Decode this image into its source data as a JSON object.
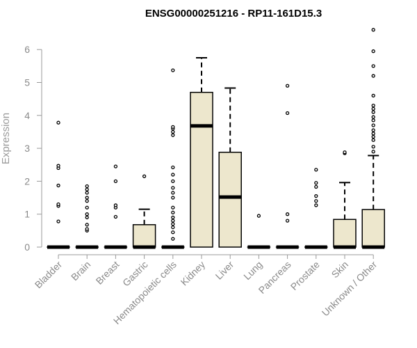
{
  "chart_data": {
    "type": "box",
    "title": "ENSG00000251216 - RP11-161D15.3",
    "xlabel": "",
    "ylabel": "Expression",
    "ylim": [
      0,
      6.6
    ],
    "yticks": [
      0,
      1,
      2,
      3,
      4,
      5,
      6
    ],
    "grid": false,
    "colors": {
      "box_fill": "#ede7cd",
      "stroke": "#000000",
      "axis": "#999999",
      "tick_text": "#8a8a8a"
    },
    "categories": [
      "Bladder",
      "Brain",
      "Breast",
      "Gastric",
      "Hematopoietic cells",
      "Kidney",
      "Liver",
      "Lung",
      "Pancreas",
      "Prostate",
      "Skin",
      "Unknown / Other"
    ],
    "boxes": [
      {
        "q1": 0,
        "median": 0,
        "q3": 0,
        "whisker_low": 0,
        "whisker_high": 0,
        "outliers": [
          0.78,
          1.25,
          1.3,
          1.87,
          2.4,
          2.47,
          3.78
        ]
      },
      {
        "q1": 0,
        "median": 0,
        "q3": 0,
        "whisker_low": 0,
        "whisker_high": 0,
        "outliers": [
          0.5,
          0.55,
          0.68,
          0.9,
          1.0,
          1.2,
          1.4,
          1.5,
          1.65,
          1.75,
          1.85
        ]
      },
      {
        "q1": 0,
        "median": 0,
        "q3": 0,
        "whisker_low": 0,
        "whisker_high": 0,
        "outliers": [
          0.92,
          1.2,
          1.27,
          2.0,
          2.45
        ]
      },
      {
        "q1": 0,
        "median": 0,
        "q3": 0.68,
        "whisker_low": 0,
        "whisker_high": 1.15,
        "outliers": [
          2.15
        ]
      },
      {
        "q1": 0,
        "median": 0,
        "q3": 0,
        "whisker_low": 0,
        "whisker_high": 0,
        "outliers": [
          0.25,
          0.45,
          0.6,
          0.7,
          0.8,
          0.9,
          1.05,
          1.2,
          1.5,
          1.65,
          1.8,
          2.0,
          2.2,
          2.42,
          3.4,
          3.5,
          3.6,
          3.65,
          5.37
        ]
      },
      {
        "q1": 0,
        "median": 3.68,
        "q3": 4.7,
        "whisker_low": 0,
        "whisker_high": 5.75,
        "outliers": []
      },
      {
        "q1": 0,
        "median": 1.52,
        "q3": 2.88,
        "whisker_low": 0,
        "whisker_high": 4.83,
        "outliers": []
      },
      {
        "q1": 0,
        "median": 0,
        "q3": 0,
        "whisker_low": 0,
        "whisker_high": 0,
        "outliers": [
          0.95
        ]
      },
      {
        "q1": 0,
        "median": 0,
        "q3": 0,
        "whisker_low": 0,
        "whisker_high": 0,
        "outliers": [
          0.8,
          1.0,
          4.07,
          4.9
        ]
      },
      {
        "q1": 0,
        "median": 0,
        "q3": 0,
        "whisker_low": 0,
        "whisker_high": 0,
        "outliers": [
          1.27,
          1.4,
          1.55,
          1.83,
          1.95,
          2.35
        ]
      },
      {
        "q1": 0,
        "median": 0,
        "q3": 0.84,
        "whisker_low": 0,
        "whisker_high": 1.96,
        "outliers": [
          2.85,
          2.88
        ]
      },
      {
        "q1": 0,
        "median": 0,
        "q3": 1.14,
        "whisker_low": 0,
        "whisker_high": 2.78,
        "outliers": [
          2.9,
          3.05,
          3.25,
          3.35,
          3.45,
          3.55,
          3.7,
          3.85,
          3.95,
          4.1,
          4.2,
          4.3,
          4.6,
          5.2,
          5.5,
          5.95,
          6.6
        ]
      }
    ]
  }
}
